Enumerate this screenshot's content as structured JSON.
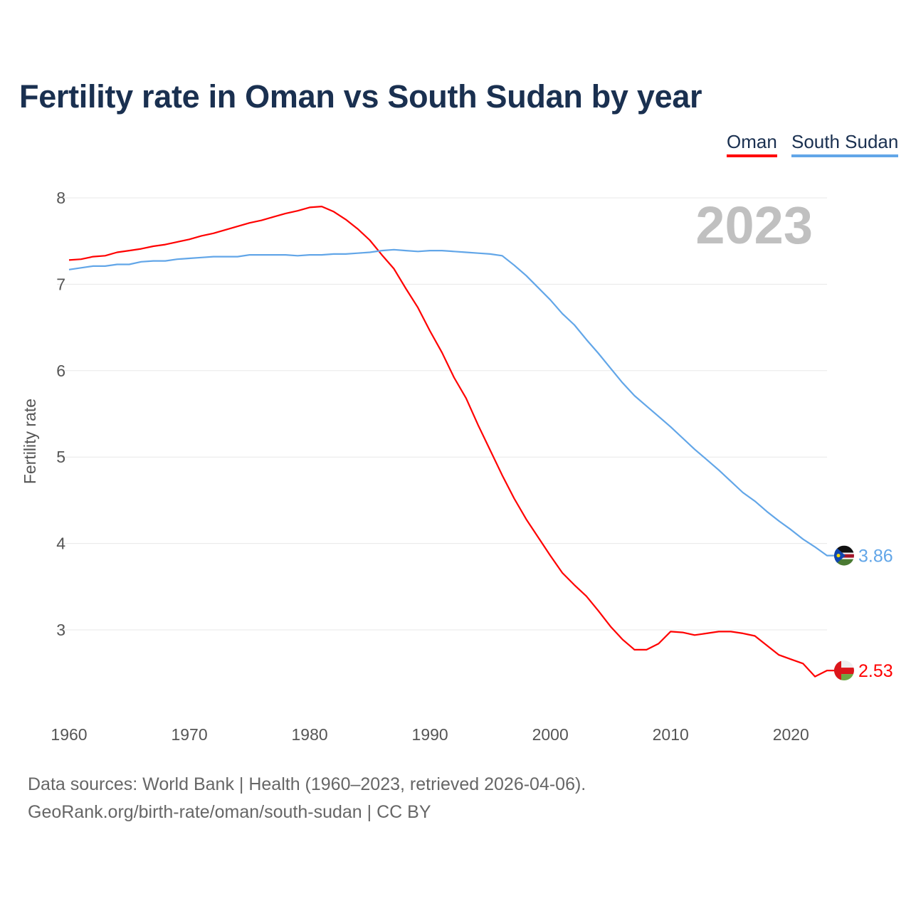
{
  "chart_data": {
    "type": "line",
    "title": "Fertility rate in Oman vs South Sudan by year",
    "xlabel": "",
    "ylabel": "Fertility rate",
    "xlim": [
      1960,
      2023
    ],
    "ylim": [
      2.2,
      8.2
    ],
    "x_ticks": [
      "1960",
      "1970",
      "1980",
      "1990",
      "2000",
      "2010",
      "2020"
    ],
    "y_ticks": [
      "3",
      "4",
      "5",
      "6",
      "7",
      "8"
    ],
    "grid": true,
    "legend_position": "top-right",
    "year_label": "2023",
    "x": [
      1960,
      1961,
      1962,
      1963,
      1964,
      1965,
      1966,
      1967,
      1968,
      1969,
      1970,
      1971,
      1972,
      1973,
      1974,
      1975,
      1976,
      1977,
      1978,
      1979,
      1980,
      1981,
      1982,
      1983,
      1984,
      1985,
      1986,
      1987,
      1988,
      1989,
      1990,
      1991,
      1992,
      1993,
      1994,
      1995,
      1996,
      1997,
      1998,
      1999,
      2000,
      2001,
      2002,
      2003,
      2004,
      2005,
      2006,
      2007,
      2008,
      2009,
      2010,
      2011,
      2012,
      2013,
      2014,
      2015,
      2016,
      2017,
      2018,
      2019,
      2020,
      2021,
      2022,
      2023
    ],
    "series": [
      {
        "name": "Oman",
        "color": "#ff0000",
        "end_label": "2.53",
        "values": [
          7.28,
          7.29,
          7.32,
          7.33,
          7.37,
          7.39,
          7.41,
          7.44,
          7.46,
          7.49,
          7.52,
          7.56,
          7.59,
          7.63,
          7.67,
          7.71,
          7.74,
          7.78,
          7.82,
          7.85,
          7.89,
          7.9,
          7.84,
          7.75,
          7.64,
          7.51,
          7.34,
          7.18,
          6.95,
          6.73,
          6.46,
          6.21,
          5.92,
          5.68,
          5.37,
          5.08,
          4.79,
          4.52,
          4.28,
          4.07,
          3.86,
          3.66,
          3.52,
          3.39,
          3.22,
          3.04,
          2.89,
          2.77,
          2.77,
          2.84,
          2.98,
          2.97,
          2.94,
          2.96,
          2.98,
          2.98,
          2.96,
          2.93,
          2.82,
          2.71,
          2.66,
          2.61,
          2.46,
          2.53
        ]
      },
      {
        "name": "South Sudan",
        "color": "#62a6e8",
        "end_label": "3.86",
        "values": [
          7.17,
          7.19,
          7.21,
          7.21,
          7.23,
          7.23,
          7.26,
          7.27,
          7.27,
          7.29,
          7.3,
          7.31,
          7.32,
          7.32,
          7.32,
          7.34,
          7.34,
          7.34,
          7.34,
          7.33,
          7.34,
          7.34,
          7.35,
          7.35,
          7.36,
          7.37,
          7.39,
          7.4,
          7.39,
          7.38,
          7.39,
          7.39,
          7.38,
          7.37,
          7.36,
          7.35,
          7.33,
          7.22,
          7.1,
          6.96,
          6.82,
          6.66,
          6.53,
          6.36,
          6.2,
          6.03,
          5.86,
          5.71,
          5.59,
          5.47,
          5.35,
          5.22,
          5.09,
          4.97,
          4.85,
          4.72,
          4.59,
          4.49,
          4.37,
          4.26,
          4.16,
          4.05,
          3.96,
          3.86
        ]
      }
    ]
  },
  "footer": {
    "line1": "Data sources: World Bank | Health (1960–2023, retrieved 2026-04-06).",
    "line2": "GeoRank.org/birth-rate/oman/south-sudan | CC BY"
  }
}
